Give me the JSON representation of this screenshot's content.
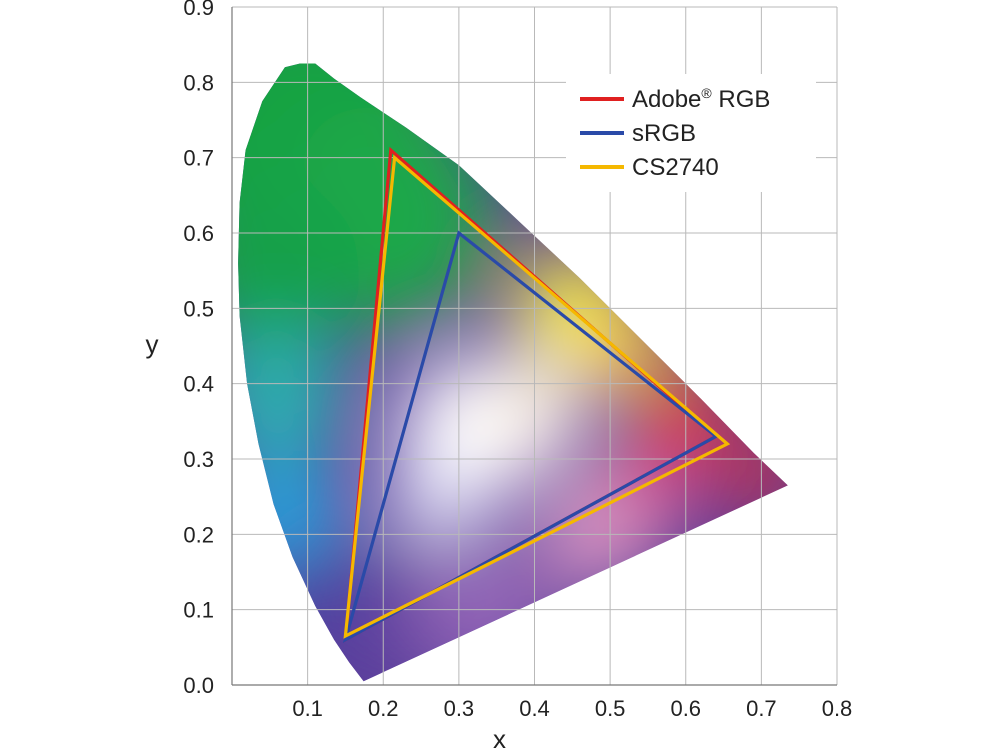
{
  "chart_data": {
    "type": "scatter",
    "title": "",
    "xlabel": "x",
    "ylabel": "y",
    "xlim": [
      0,
      0.8
    ],
    "ylim": [
      0,
      0.9
    ],
    "grid": true,
    "x_ticks": [
      "0.1",
      "0.2",
      "0.3",
      "0.4",
      "0.5",
      "0.6",
      "0.7",
      "0.8"
    ],
    "y_ticks": [
      "0.0",
      "0.1",
      "0.2",
      "0.3",
      "0.4",
      "0.5",
      "0.6",
      "0.7",
      "0.8",
      "0.9"
    ],
    "legend_position": "top-right",
    "spectral_locus": [
      [
        0.174,
        0.005
      ],
      [
        0.155,
        0.03
      ],
      [
        0.135,
        0.06
      ],
      [
        0.11,
        0.105
      ],
      [
        0.08,
        0.17
      ],
      [
        0.055,
        0.24
      ],
      [
        0.035,
        0.32
      ],
      [
        0.02,
        0.4
      ],
      [
        0.01,
        0.49
      ],
      [
        0.008,
        0.56
      ],
      [
        0.01,
        0.64
      ],
      [
        0.018,
        0.71
      ],
      [
        0.04,
        0.775
      ],
      [
        0.07,
        0.82
      ],
      [
        0.09,
        0.825
      ],
      [
        0.11,
        0.825
      ],
      [
        0.135,
        0.805
      ],
      [
        0.17,
        0.78
      ],
      [
        0.23,
        0.74
      ],
      [
        0.3,
        0.69
      ],
      [
        0.38,
        0.615
      ],
      [
        0.46,
        0.54
      ],
      [
        0.54,
        0.46
      ],
      [
        0.62,
        0.38
      ],
      [
        0.69,
        0.308
      ],
      [
        0.735,
        0.265
      ]
    ],
    "series": [
      {
        "name": "Adobe® RGB",
        "label_main": "Adobe",
        "label_sup": "®",
        "label_tail": " RGB",
        "color": "#e02020",
        "points": [
          [
            0.64,
            0.33
          ],
          [
            0.21,
            0.71
          ],
          [
            0.15,
            0.06
          ]
        ]
      },
      {
        "name": "sRGB",
        "label_main": "sRGB",
        "label_sup": "",
        "label_tail": "",
        "color": "#2a4aa8",
        "points": [
          [
            0.64,
            0.33
          ],
          [
            0.3,
            0.6
          ],
          [
            0.15,
            0.06
          ]
        ]
      },
      {
        "name": "CS2740",
        "label_main": "CS2740",
        "label_sup": "",
        "label_tail": "",
        "color": "#f5b800",
        "points": [
          [
            0.655,
            0.32
          ],
          [
            0.215,
            0.7
          ],
          [
            0.15,
            0.065
          ]
        ]
      }
    ]
  }
}
